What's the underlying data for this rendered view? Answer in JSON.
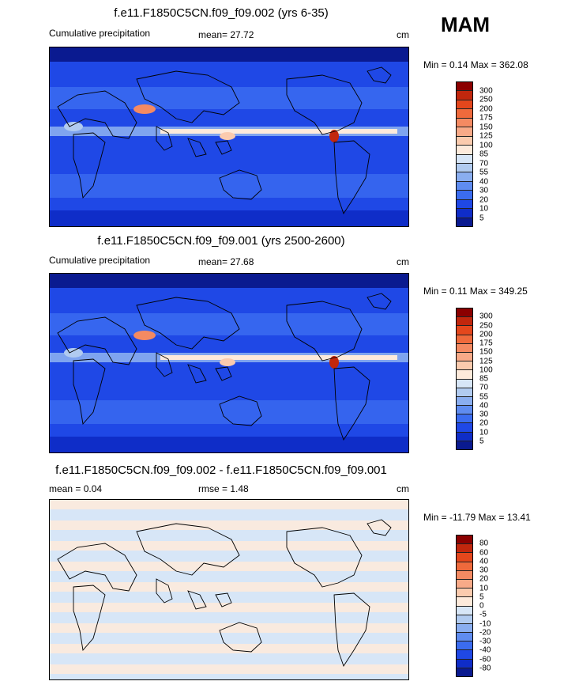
{
  "season": "MAM",
  "panels": [
    {
      "title": "f.e11.F1850C5CN.f09_f09.002 (yrs 6-35)",
      "left_label": "Cumulative precipitation",
      "center_label": "mean=  27.72",
      "units": "cm",
      "minmax": "Min =   0.14 Max = 362.08",
      "levels": [
        "300",
        "250",
        "200",
        "175",
        "150",
        "125",
        "100",
        "85",
        "70",
        "55",
        "40",
        "30",
        "20",
        "10",
        "5"
      ],
      "colors": [
        "#8b0000",
        "#c1270d",
        "#e4471c",
        "#ef6a3c",
        "#f48a62",
        "#f8aa88",
        "#fbcbae",
        "#fdeadb",
        "#d7e6f7",
        "#b1cbf0",
        "#8aaef0",
        "#5f8cf0",
        "#3b6cf0",
        "#1f48e6",
        "#0f2dc8",
        "#0a1a90"
      ],
      "map_style": "precip"
    },
    {
      "title": "f.e11.F1850C5CN.f09_f09.001 (yrs 2500-2600)",
      "left_label": "Cumulative precipitation",
      "center_label": "mean=  27.68",
      "units": "cm",
      "minmax": "Min =   0.11 Max = 349.25",
      "levels": [
        "300",
        "250",
        "200",
        "175",
        "150",
        "125",
        "100",
        "85",
        "70",
        "55",
        "40",
        "30",
        "20",
        "10",
        "5"
      ],
      "colors": [
        "#8b0000",
        "#c1270d",
        "#e4471c",
        "#ef6a3c",
        "#f48a62",
        "#f8aa88",
        "#fbcbae",
        "#fdeadb",
        "#d7e6f7",
        "#b1cbf0",
        "#8aaef0",
        "#5f8cf0",
        "#3b6cf0",
        "#1f48e6",
        "#0f2dc8",
        "#0a1a90"
      ],
      "map_style": "precip"
    },
    {
      "title": "f.e11.F1850C5CN.f09_f09.002 - f.e11.F1850C5CN.f09_f09.001",
      "left_label": "mean =   0.04",
      "center_label": "rmse =   1.48",
      "units": "cm",
      "minmax": "Min = -11.79 Max =  13.41",
      "levels": [
        "80",
        "60",
        "40",
        "30",
        "20",
        "10",
        "5",
        "0",
        "-5",
        "-10",
        "-20",
        "-30",
        "-40",
        "-60",
        "-80"
      ],
      "colors": [
        "#8b0000",
        "#c1270d",
        "#e4471c",
        "#ef6a3c",
        "#f48a62",
        "#f8aa88",
        "#fbcbae",
        "#fdeadb",
        "#d7e6f7",
        "#b1cbf0",
        "#8aaef0",
        "#5f8cf0",
        "#3b6cf0",
        "#1f48e6",
        "#0f2dc8",
        "#0a1a90"
      ],
      "map_style": "diff"
    }
  ]
}
